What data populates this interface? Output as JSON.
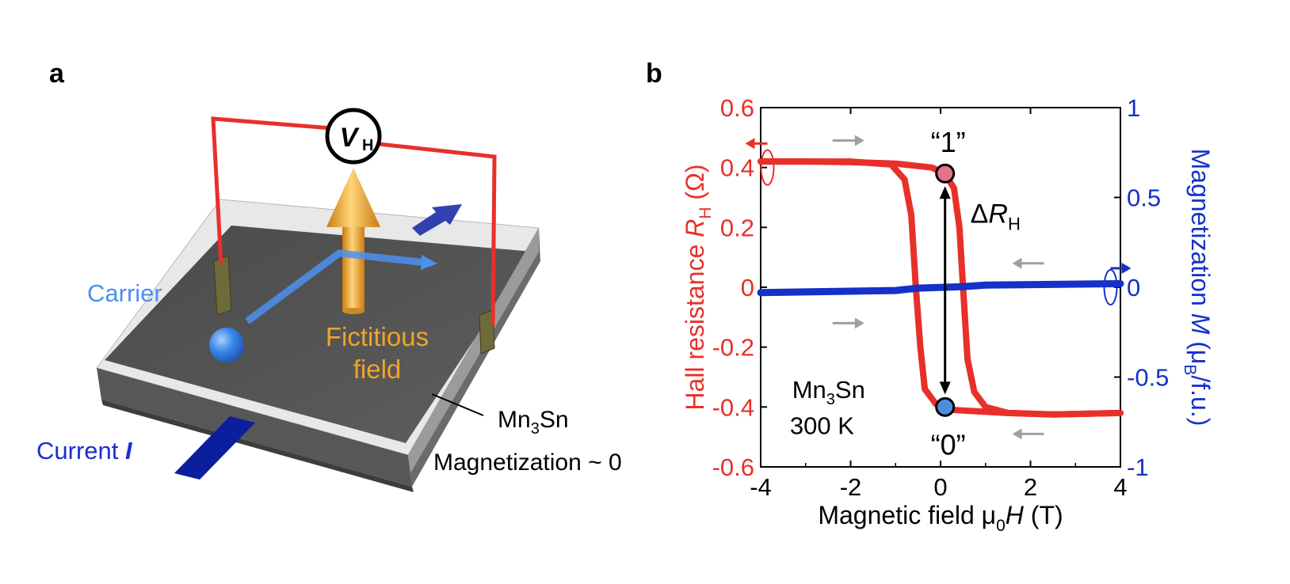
{
  "panel_a": {
    "label": "a",
    "voltmeter": {
      "symbol": "V",
      "subscript": "H"
    },
    "carrier_label": "Carrier",
    "fictitious_field_label": [
      "Fictitious",
      "field"
    ],
    "material_label": {
      "pre": "Mn",
      "sub": "3",
      "post": "Sn"
    },
    "magnetization_label": "Magnetization ~ 0",
    "current_label": {
      "text": "Current ",
      "symbol": "I"
    },
    "colors": {
      "wire": "#e8302a",
      "carrier": "#3a86e8",
      "field_arrow": "#f0a526",
      "current": "#0a1e9e",
      "film": "#505050",
      "substrate": "#cfcfcf"
    }
  },
  "panel_b": {
    "label": "b",
    "state_labels": {
      "one": "“1”",
      "zero": "“0”"
    },
    "delta_label": {
      "pre": "Δ",
      "sym": "R",
      "sub": "H"
    },
    "sample_label": {
      "pre": "Mn",
      "sub": "3",
      "post": "Sn",
      "temp": "300 K"
    },
    "colors": {
      "hall": "#e8302a",
      "magnetization": "#1431c8",
      "state_one": "#e0758a",
      "state_zero": "#4f8de0",
      "sweep_arrow": "#a0a0a0"
    }
  },
  "chart_data": {
    "type": "line",
    "x_axis": {
      "label_pre": "Magnetic field μ",
      "label_sub": "0",
      "label_sym": "H",
      "label_post": " (T)",
      "range": [
        -4,
        4
      ],
      "ticks": [
        -4,
        -2,
        0,
        2,
        4
      ],
      "tick_labels": [
        "-4",
        "-2",
        "0",
        "2",
        "4"
      ]
    },
    "y_left": {
      "label_pre": "Hall resistance ",
      "label_sym": "R",
      "label_sub": "H",
      "label_post": " (Ω)",
      "range": [
        -0.6,
        0.6
      ],
      "ticks": [
        -0.6,
        -0.4,
        -0.2,
        0,
        0.2,
        0.4,
        0.6
      ],
      "tick_labels": [
        "-0.6",
        "-0.4",
        "-0.2",
        "0",
        "0.2",
        "0.4",
        "0.6"
      ]
    },
    "y_right": {
      "label_pre": "Magnetization ",
      "label_sym": "M",
      "label_post": " (μ",
      "label_sub": "B",
      "label_end": "/f.u.)",
      "range": [
        -1,
        1
      ],
      "ticks": [
        -1,
        -0.5,
        0,
        0.5,
        1
      ],
      "tick_labels": [
        "-1",
        "-0.5",
        "0",
        "0.5",
        "1"
      ]
    },
    "series": [
      {
        "axis": "left",
        "branch": "sweep-up",
        "points": [
          [
            -4,
            0.42
          ],
          [
            -3,
            0.42
          ],
          [
            -2,
            0.418
          ],
          [
            -1,
            0.413
          ],
          [
            -0.2,
            0.4
          ],
          [
            0.1,
            0.38
          ],
          [
            0.3,
            0.33
          ],
          [
            0.42,
            0.2
          ],
          [
            0.5,
            0
          ],
          [
            0.6,
            -0.24
          ],
          [
            0.75,
            -0.35
          ],
          [
            1.0,
            -0.4
          ],
          [
            1.5,
            -0.42
          ],
          [
            2.5,
            -0.425
          ],
          [
            4,
            -0.42
          ]
        ]
      },
      {
        "axis": "left",
        "branch": "sweep-down",
        "points": [
          [
            4,
            -0.42
          ],
          [
            2.5,
            -0.425
          ],
          [
            1.5,
            -0.42
          ],
          [
            0.3,
            -0.41
          ],
          [
            0.1,
            -0.4
          ],
          [
            -0.1,
            -0.39
          ],
          [
            -0.35,
            -0.34
          ],
          [
            -0.45,
            -0.2
          ],
          [
            -0.55,
            0
          ],
          [
            -0.65,
            0.24
          ],
          [
            -0.8,
            0.36
          ],
          [
            -1.1,
            0.41
          ],
          [
            -2,
            0.42
          ],
          [
            -4,
            0.42
          ]
        ]
      },
      {
        "axis": "right",
        "points": [
          [
            -4,
            -0.03
          ],
          [
            -1,
            -0.018
          ],
          [
            -0.5,
            -0.005
          ],
          [
            0.5,
            0.003
          ],
          [
            1.0,
            0.012
          ],
          [
            4,
            0.02
          ]
        ]
      }
    ],
    "markers": [
      {
        "label": "“1”",
        "x": 0.1,
        "y": 0.38
      },
      {
        "label": "“0”",
        "x": 0.1,
        "y": -0.4
      }
    ]
  }
}
